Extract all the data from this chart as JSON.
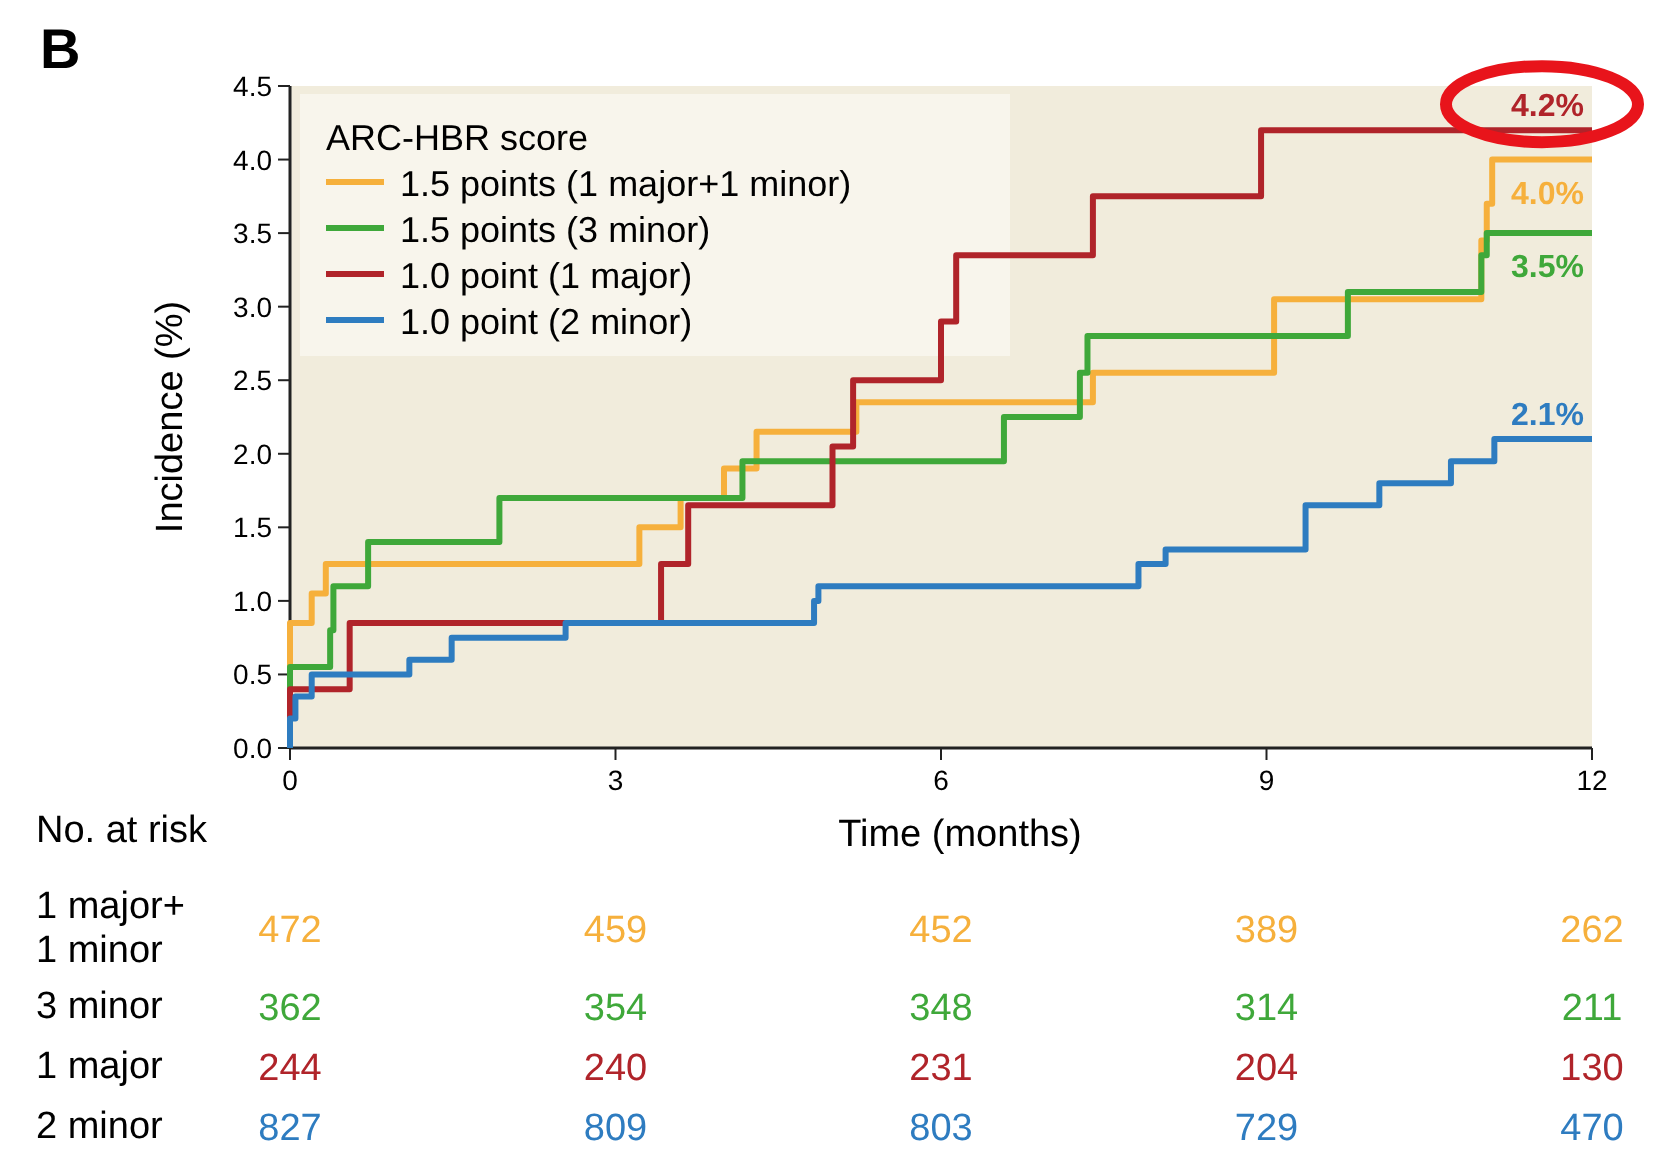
{
  "chart_data": {
    "type": "step",
    "title": "B",
    "xlabel": "Time (months)",
    "ylabel": "Incidence (%)",
    "legend_title": "ARC-HBR score",
    "legend": "top left",
    "grid": false,
    "xlim": [
      0,
      12
    ],
    "xticks": [
      0,
      3,
      6,
      9,
      12
    ],
    "ylim": [
      0,
      4.5
    ],
    "yticks": [
      {
        "value": 0,
        "label": "0.0"
      },
      0.5,
      {
        "value": 1,
        "label": "1.0"
      },
      1.5,
      {
        "value": 2,
        "label": "2.0"
      },
      2.5,
      {
        "value": 3,
        "label": "3.0"
      },
      3.5,
      {
        "value": 4,
        "label": "4.0"
      },
      4.5
    ],
    "series": [
      {
        "name": "1.5 points (1 major+1 minor)",
        "color": "#f6b03c",
        "x": [
          0,
          0,
          0.2,
          0.33,
          3.22,
          3.6,
          4.0,
          4.3,
          5.22,
          7.4,
          9.07,
          10.98,
          11.03,
          11.08,
          12
        ],
        "values": [
          0,
          0.85,
          1.05,
          1.25,
          1.5,
          1.7,
          1.9,
          2.15,
          2.35,
          2.55,
          3.05,
          3.45,
          3.7,
          4.0,
          4.0
        ]
      },
      {
        "name": "1.5 points (3 minor)",
        "color": "#3fa83a",
        "x": [
          0,
          0,
          0.37,
          0.4,
          0.72,
          1.93,
          4.17,
          6.58,
          7.28,
          7.35,
          9.75,
          10.98,
          11.03,
          12
        ],
        "values": [
          0,
          0.55,
          0.8,
          1.1,
          1.4,
          1.7,
          1.95,
          2.25,
          2.55,
          2.8,
          3.1,
          3.35,
          3.5,
          3.5
        ]
      },
      {
        "name": "1.0 point (1 major)",
        "color": "#b0242a",
        "x": [
          0,
          0,
          0.55,
          3.42,
          3.67,
          5.0,
          5.19,
          6.0,
          6.14,
          7.4,
          8.95,
          12
        ],
        "values": [
          0,
          0.4,
          0.85,
          1.25,
          1.65,
          2.05,
          2.5,
          2.9,
          3.35,
          3.75,
          4.2,
          4.2
        ]
      },
      {
        "name": "1.0 point (2 minor)",
        "color": "#2e7cc0",
        "x": [
          0,
          0,
          0.05,
          0.2,
          1.1,
          1.49,
          2.54,
          4.83,
          4.87,
          7.82,
          8.07,
          9.36,
          10.04,
          10.7,
          11.1,
          12
        ],
        "values": [
          0,
          0.2,
          0.35,
          0.5,
          0.6,
          0.75,
          0.85,
          1.0,
          1.1,
          1.25,
          1.35,
          1.65,
          1.8,
          1.95,
          2.1,
          2.1
        ]
      }
    ],
    "annotations": [
      {
        "text": "4.0%",
        "y": 4.0
      },
      {
        "text": "3.5%",
        "y": 3.5
      },
      {
        "text": "4.2%",
        "y": 4.2
      },
      {
        "text": "2.1%",
        "y": 2.1
      },
      "No. at risk",
      "1 major+\n1 minor",
      "472",
      "459",
      "452",
      "389",
      "262",
      "3 minor",
      "362",
      "354",
      "348",
      "314",
      "211",
      "1 major",
      "244",
      "240",
      "231",
      "204",
      "130",
      "2 minor",
      "827",
      "809",
      "803",
      "729",
      "470"
    ]
  }
}
